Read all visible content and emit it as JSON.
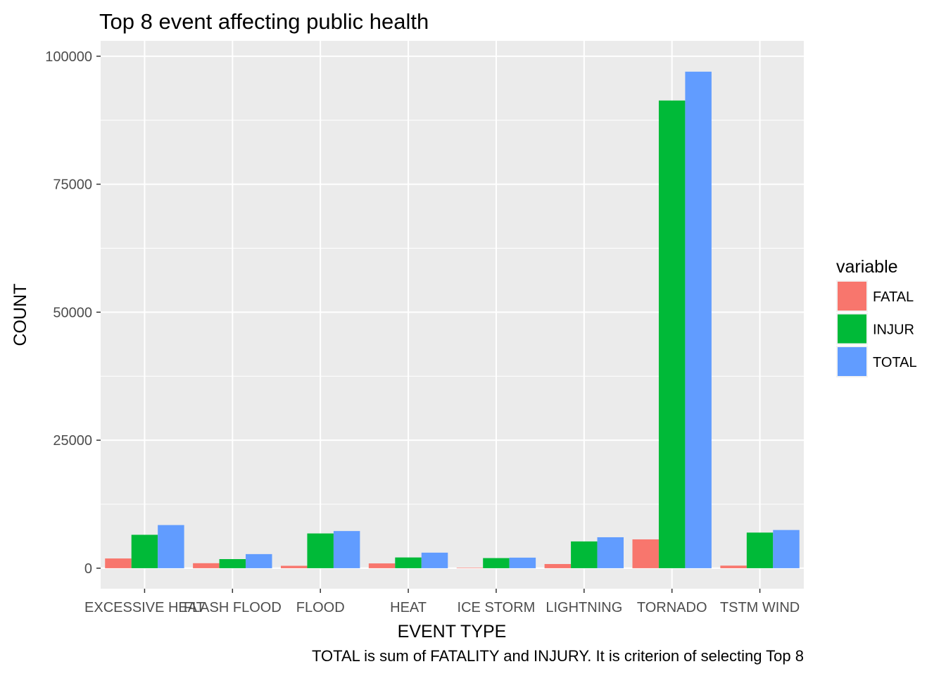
{
  "chart_data": {
    "type": "bar",
    "title": "Top 8 event affecting public health",
    "xlabel": "EVENT TYPE",
    "ylabel": "COUNT",
    "caption": "TOTAL is sum of FATALITY and INJURY. It is criterion of selecting Top 8",
    "categories": [
      "EXCESSIVE HEAT",
      "FLASH FLOOD",
      "FLOOD",
      "HEAT",
      "ICE STORM",
      "LIGHTNING",
      "TORNADO",
      "TSTM WIND"
    ],
    "ylim": [
      -4000,
      103000
    ],
    "yticks": [
      0,
      25000,
      50000,
      75000,
      100000
    ],
    "ytick_labels": [
      "0",
      "25000",
      "50000",
      "75000",
      "100000"
    ],
    "series": [
      {
        "name": "FATAL",
        "color": "#F8766D",
        "values": [
          1903,
          978,
          470,
          937,
          89,
          816,
          5633,
          504
        ]
      },
      {
        "name": "INJUR",
        "color": "#00BA38",
        "values": [
          6525,
          1777,
          6789,
          2100,
          1975,
          5230,
          91346,
          6957
        ]
      },
      {
        "name": "TOTAL",
        "color": "#619CFF",
        "values": [
          8428,
          2755,
          7259,
          3037,
          2064,
          6046,
          96979,
          7461
        ]
      }
    ],
    "legend": {
      "title": "variable",
      "position": "right"
    },
    "grid": true,
    "panel_background": "#EBEBEB"
  }
}
